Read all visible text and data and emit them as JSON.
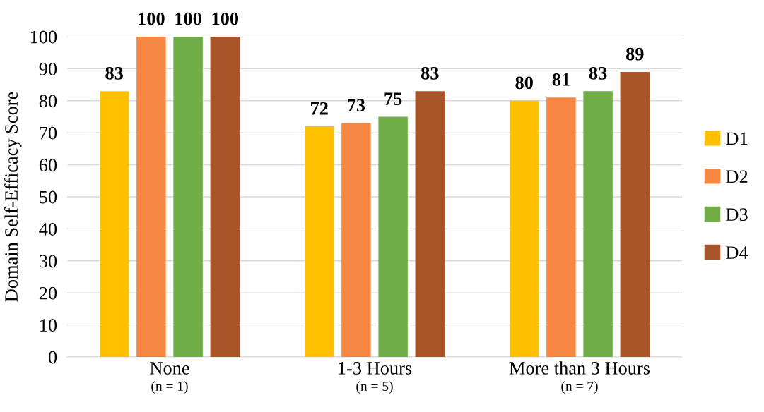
{
  "chart_data": {
    "type": "bar",
    "ylabel": "Domain Self-Efficacy Score",
    "categories": [
      "None\n(n = 1)",
      "1-3 Hours\n(n = 5)",
      "More than 3 Hours\n(n = 7)"
    ],
    "series": [
      {
        "name": "D1",
        "color": "#ffc000",
        "values": [
          83,
          72,
          80
        ]
      },
      {
        "name": "D2",
        "color": "#f58742",
        "values": [
          100,
          73,
          81
        ]
      },
      {
        "name": "D3",
        "color": "#70ad47",
        "values": [
          100,
          75,
          83
        ]
      },
      {
        "name": "D4",
        "color": "#a9552a",
        "values": [
          100,
          83,
          89
        ]
      }
    ],
    "ylim": [
      0,
      100
    ],
    "yticks": [
      0,
      10,
      20,
      30,
      40,
      50,
      60,
      70,
      80,
      90,
      100
    ],
    "grid": "y",
    "legend": "right",
    "data_labels": true
  }
}
